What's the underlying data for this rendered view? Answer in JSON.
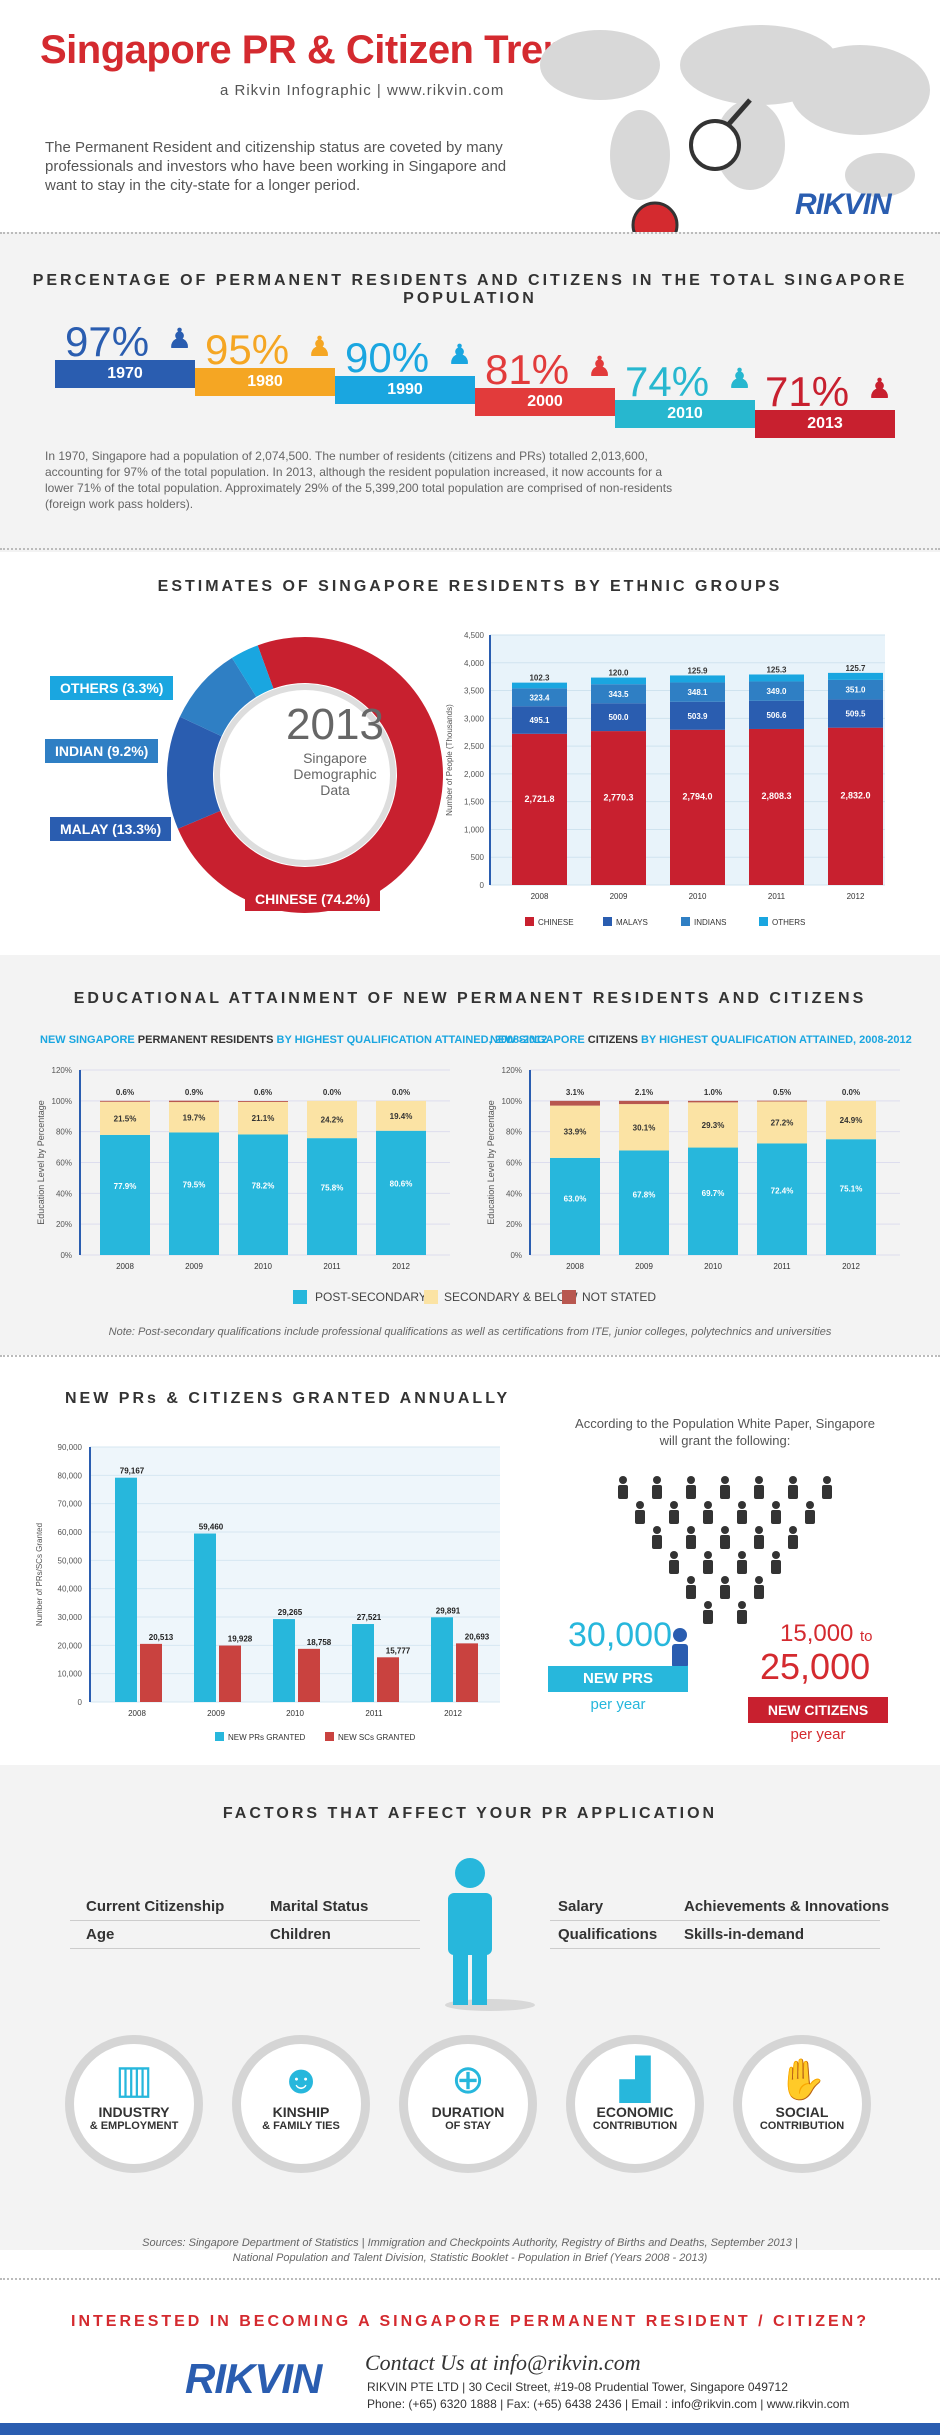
{
  "header": {
    "title": "Singapore PR & Citizen Trends",
    "subtitle": "a Rikvin Infographic | www.rikvin.com",
    "intro": "The Permanent Resident and citizenship status are coveted by many professionals and investors who have been working in Singapore and want to stay in the city-state for a longer period.",
    "logo": "RIKVIN"
  },
  "section1": {
    "title": "PERCENTAGE OF PERMANENT RESIDENTS AND CITIZENS IN THE TOTAL SINGAPORE POPULATION",
    "items": [
      {
        "pct": "97%",
        "year": "1970",
        "color": "#2a5db0"
      },
      {
        "pct": "95%",
        "year": "1980",
        "color": "#f5a623"
      },
      {
        "pct": "90%",
        "year": "1990",
        "color": "#1aa6e0"
      },
      {
        "pct": "81%",
        "year": "2000",
        "color": "#e23b3b"
      },
      {
        "pct": "74%",
        "year": "2010",
        "color": "#27b7cf"
      },
      {
        "pct": "71%",
        "year": "2013",
        "color": "#c8202f"
      }
    ],
    "paragraph": "In 1970, Singapore had a population of 2,074,500. The number of residents (citizens and PRs) totalled 2,013,600, accounting for 97% of the total population. In 2013, although the resident population increased, it now accounts for a lower 71% of the total population. Approximately 29% of the 5,399,200 total population are comprised of non-residents (foreign work pass holders)."
  },
  "section2": {
    "title": "ESTIMATES OF SINGAPORE RESIDENTS BY ETHNIC GROUPS",
    "donut_center": {
      "year": "2013",
      "line1": "Singapore",
      "line2": "Demographic",
      "line3": "Data"
    },
    "labels": {
      "others": "OTHERS (3.3%)",
      "indian": "INDIAN (9.2%)",
      "malay": "MALAY (13.3%)",
      "chinese": "CHINESE (74.2%)"
    },
    "ylabel": "Number of People (Thousands)"
  },
  "section3": {
    "title": "EDUCATIONAL ATTAINMENT OF NEW PERMANENT RESIDENTS AND CITIZENS",
    "left_title_a": "NEW SINGAPORE ",
    "left_title_b": "PERMANENT RESIDENTS",
    "left_title_c": " BY HIGHEST QUALIFICATION ATTAINED, 2008-2012",
    "right_title_a": "NEW SINGAPORE ",
    "right_title_b": "CITIZENS",
    "right_title_c": " BY HIGHEST QUALIFICATION ATTAINED, 2008-2012",
    "ylabel": "Education Level by Percentage",
    "legend": {
      "post": "POST-SECONDARY",
      "sec": "SECONDARY & BELOW",
      "ns": "NOT STATED"
    },
    "note": "Note: Post-secondary qualifications include professional qualifications as well as certifications from ITE, junior colleges, polytechnics and universities"
  },
  "section4": {
    "title": "NEW PRs & CITIZENS GRANTED ANNUALLY",
    "ylabel": "Number of PRs/SCs Granted",
    "legend": {
      "pr": "NEW PRs GRANTED",
      "sc": "NEW SCs GRANTED"
    },
    "white_paper": "According to the Population White Paper, Singapore will grant the following:",
    "pr_number": "30,000",
    "pr_label": "NEW PRS",
    "pr_per": "per year",
    "sc_number_a": "15,000",
    "sc_to": "to",
    "sc_number_b": "25,000",
    "sc_label": "NEW CITIZENS",
    "sc_per": "per year"
  },
  "section5": {
    "title": "FACTORS THAT AFFECT YOUR PR APPLICATION",
    "factors_left": [
      "Current Citizenship",
      "Marital Status",
      "Age",
      "Children"
    ],
    "factors_right": [
      "Salary",
      "Achievements & Innovations",
      "Qualifications",
      "Skills-in-demand"
    ],
    "circles": [
      {
        "icon": "building-icon",
        "glyph": "▥",
        "t1": "INDUSTRY",
        "t2": "& EMPLOYMENT"
      },
      {
        "icon": "people-icon",
        "glyph": "☻",
        "t1": "KINSHIP",
        "t2": "& FAMILY TIES"
      },
      {
        "icon": "globe-icon",
        "glyph": "⊕",
        "t1": "DURATION",
        "t2": "OF STAY"
      },
      {
        "icon": "chart-icon",
        "glyph": "▟",
        "t1": "ECONOMIC",
        "t2": "CONTRIBUTION"
      },
      {
        "icon": "handshake-icon",
        "glyph": "✋",
        "t1": "SOCIAL",
        "t2": "CONTRIBUTION"
      }
    ]
  },
  "footer": {
    "sources_1": "Sources: Singapore Department of Statistics | Immigration and Checkpoints Authority, Registry of Births and Deaths, September 2013 |",
    "sources_2": "National Population and Talent Division, Statistic Booklet - Population in Brief (Years 2008 - 2013)",
    "cta": "INTERESTED IN BECOMING A SINGAPORE PERMANENT RESIDENT / CITIZEN?",
    "contact": "Contact Us at info@rikvin.com",
    "address": "RIKVIN PTE LTD | 30 Cecil Street, #19-08 Prudential Tower, Singapore 049712",
    "phone": "Phone: (+65) 6320 1888 | Fax: (+65) 6438 2436 | Email : info@rikvin.com | www.rikvin.com",
    "logo": "RIKVIN"
  },
  "colors": {
    "red": "#c8202f",
    "blue": "#2a5db0",
    "cyan": "#27b7dc",
    "yellow": "#fbe3a4",
    "brown": "#b8574f"
  },
  "chart_data": [
    {
      "type": "bar",
      "title": "",
      "categories": [
        "2008",
        "2009",
        "2010",
        "2011",
        "2012"
      ],
      "series": [
        {
          "name": "CHINESE",
          "values": [
            2721.8,
            2770.3,
            2794.0,
            2808.3,
            2832.0
          ],
          "labels": [
            "2,721.8",
            "2,770.3",
            "2,794.0",
            "2,808.3",
            "2,832.0"
          ]
        },
        {
          "name": "MALAYS",
          "values": [
            495.1,
            500.0,
            503.9,
            506.6,
            509.5
          ],
          "labels": [
            "495.1",
            "500.0",
            "503.9",
            "506.6",
            "509.5"
          ]
        },
        {
          "name": "INDIANS",
          "values": [
            323.4,
            343.5,
            348.1,
            349.0,
            351.0
          ],
          "labels": [
            "323.4",
            "343.5",
            "348.1",
            "349.0",
            "351.0"
          ]
        },
        {
          "name": "OTHERS",
          "values": [
            102.3,
            120.0,
            125.9,
            125.3,
            125.7
          ],
          "labels": [
            "102.3",
            "120.0",
            "125.9",
            "125.3",
            "125.7"
          ]
        }
      ],
      "stacked": true,
      "ylim": [
        0,
        4500
      ],
      "yticks": [
        "0",
        "500",
        "1,000",
        "1,500",
        "2,000",
        "2,500",
        "3,000",
        "3,500",
        "4,000",
        "4,500"
      ],
      "ylabel": "Number of People (Thousands)"
    },
    {
      "type": "bar",
      "title": "NEW SINGAPORE PERMANENT RESIDENTS BY HIGHEST QUALIFICATION ATTAINED, 2008-2012",
      "categories": [
        "2008",
        "2009",
        "2010",
        "2011",
        "2012"
      ],
      "series": [
        {
          "name": "POST-SECONDARY",
          "values": [
            77.9,
            79.5,
            78.2,
            75.8,
            80.6
          ]
        },
        {
          "name": "SECONDARY & BELOW",
          "values": [
            21.5,
            19.7,
            21.1,
            24.2,
            19.4
          ]
        },
        {
          "name": "NOT STATED",
          "values": [
            0.6,
            0.9,
            0.6,
            0.0,
            0.0
          ]
        }
      ],
      "stacked": true,
      "ylim": [
        0,
        120
      ],
      "yticks": [
        "0%",
        "20%",
        "40%",
        "60%",
        "80%",
        "100%",
        "120%"
      ],
      "ylabel": "Education Level by Percentage"
    },
    {
      "type": "bar",
      "title": "NEW SINGAPORE CITIZENS BY HIGHEST QUALIFICATION ATTAINED, 2008-2012",
      "categories": [
        "2008",
        "2009",
        "2010",
        "2011",
        "2012"
      ],
      "series": [
        {
          "name": "POST-SECONDARY",
          "values": [
            63.0,
            67.8,
            69.7,
            72.4,
            75.1
          ]
        },
        {
          "name": "SECONDARY & BELOW",
          "values": [
            33.9,
            30.1,
            29.3,
            27.2,
            24.9
          ]
        },
        {
          "name": "NOT STATED",
          "values": [
            3.1,
            2.1,
            1.0,
            0.5,
            0.0
          ]
        }
      ],
      "stacked": true,
      "ylim": [
        0,
        120
      ],
      "yticks": [
        "0%",
        "20%",
        "40%",
        "60%",
        "80%",
        "100%",
        "120%"
      ],
      "ylabel": "Education Level by Percentage"
    },
    {
      "type": "bar",
      "title": "NEW PRs & CITIZENS GRANTED ANNUALLY",
      "categories": [
        "2008",
        "2009",
        "2010",
        "2011",
        "2012"
      ],
      "series": [
        {
          "name": "NEW PRs GRANTED",
          "values": [
            79167,
            59460,
            29265,
            27521,
            29891
          ],
          "labels": [
            "79,167",
            "59,460",
            "29,265",
            "27,521",
            "29,891"
          ]
        },
        {
          "name": "NEW SCs GRANTED",
          "values": [
            20513,
            19928,
            18758,
            15777,
            20693
          ],
          "labels": [
            "20,513",
            "19,928",
            "18,758",
            "15,777",
            "20,693"
          ]
        }
      ],
      "stacked": false,
      "ylim": [
        0,
        90000
      ],
      "yticks": [
        "0",
        "10,000",
        "20,000",
        "30,000",
        "40,000",
        "50,000",
        "60,000",
        "70,000",
        "80,000",
        "90,000"
      ],
      "ylabel": "Number of PRs/SCs Granted"
    },
    {
      "type": "pie",
      "title": "",
      "categories": [
        "CHINESE",
        "MALAY",
        "INDIAN",
        "OTHERS"
      ],
      "values": [
        74.2,
        13.3,
        9.2,
        3.3
      ]
    }
  ]
}
